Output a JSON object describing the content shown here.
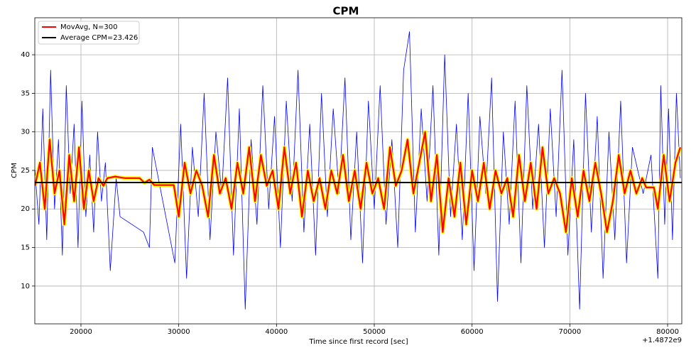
{
  "chart_data": {
    "type": "line",
    "title": "CPM",
    "x_label": "Time since first record [sec]",
    "y_label": "CPM",
    "x_offset_label": "+1.4872e9",
    "xlim": [
      15280,
      81450
    ],
    "ylim": [
      5.1,
      44.8
    ],
    "xticks": [
      20000,
      30000,
      40000,
      50000,
      60000,
      70000,
      80000
    ],
    "yticks": [
      10,
      15,
      20,
      25,
      30,
      35,
      40
    ],
    "grid": true,
    "legend": "upper left",
    "series": [
      {
        "color": "#0000ff",
        "x": [
          15300,
          15700,
          16100,
          16500,
          16900,
          17300,
          17700,
          18100,
          18500,
          18900,
          19300,
          19700,
          20100,
          20500,
          20900,
          21300,
          21700,
          22100,
          22500,
          23000,
          23600,
          24000,
          26400,
          27000,
          27300,
          29600,
          30200,
          30800,
          31400,
          32000,
          32600,
          33200,
          33800,
          34400,
          35000,
          35600,
          36200,
          36800,
          37400,
          38000,
          38600,
          39200,
          39800,
          40400,
          41000,
          41600,
          42200,
          42800,
          43400,
          44000,
          44600,
          45200,
          45800,
          46400,
          47000,
          47600,
          48200,
          48800,
          49400,
          50000,
          50600,
          51200,
          51800,
          52400,
          53000,
          53600,
          54200,
          54800,
          55400,
          56000,
          56600,
          57200,
          57800,
          58400,
          59000,
          59600,
          60200,
          60800,
          61400,
          62000,
          62600,
          63200,
          63800,
          64400,
          65000,
          65600,
          66200,
          66800,
          67400,
          68000,
          68600,
          69200,
          69800,
          70400,
          71000,
          71600,
          72200,
          72800,
          73400,
          74000,
          74600,
          75200,
          75800,
          76400,
          77500,
          78300,
          79000,
          79300,
          79700,
          80100,
          80500,
          80900,
          81300
        ],
        "values": [
          25,
          18,
          33,
          16,
          38,
          20,
          29,
          14,
          36,
          22,
          31,
          15,
          34,
          19,
          27,
          17,
          30,
          21,
          26,
          12,
          24,
          19,
          17,
          15,
          28,
          13,
          31,
          11,
          28,
          19,
          35,
          16,
          30,
          22,
          37,
          14,
          33,
          7,
          29,
          18,
          36,
          20,
          32,
          15,
          34,
          21,
          38,
          17,
          31,
          14,
          35,
          19,
          33,
          22,
          37,
          16,
          30,
          13,
          34,
          20,
          36,
          18,
          29,
          15,
          38,
          43,
          17,
          33,
          21,
          36,
          14,
          40,
          19,
          31,
          16,
          35,
          12,
          32,
          22,
          37,
          8,
          30,
          18,
          34,
          13,
          36,
          20,
          31,
          15,
          33,
          19,
          38,
          14,
          29,
          7,
          35,
          17,
          32,
          11,
          30,
          16,
          34,
          13,
          28,
          22,
          27,
          11,
          36,
          18,
          33,
          16,
          35,
          24
        ]
      },
      {
        "name": "MovAvg, N=300",
        "color": "#ff0000",
        "edge_color": "#ffff00",
        "x": [
          15300,
          15800,
          16300,
          16800,
          17300,
          17800,
          18300,
          18800,
          19300,
          19800,
          20300,
          20800,
          21300,
          21800,
          22300,
          22700,
          23500,
          24500,
          26000,
          26500,
          27000,
          27500,
          29500,
          30000,
          30600,
          31200,
          31800,
          32400,
          33000,
          33600,
          34200,
          34800,
          35400,
          36000,
          36600,
          37200,
          37800,
          38400,
          39000,
          39600,
          40200,
          40800,
          41400,
          42000,
          42600,
          43200,
          43800,
          44400,
          45000,
          45600,
          46200,
          46800,
          47400,
          48000,
          48600,
          49200,
          49800,
          50400,
          51000,
          51600,
          52200,
          52800,
          53400,
          54000,
          54600,
          55200,
          55800,
          56400,
          57000,
          57600,
          58200,
          58800,
          59400,
          60000,
          60600,
          61200,
          61800,
          62400,
          63000,
          63600,
          64200,
          64800,
          65400,
          66000,
          66600,
          67200,
          67800,
          68400,
          69000,
          69600,
          70200,
          70800,
          71400,
          72000,
          72600,
          73200,
          73800,
          74400,
          75000,
          75600,
          76200,
          76800,
          77400,
          77800,
          78600,
          79000,
          79600,
          80200,
          80800,
          81300
        ],
        "values": [
          23,
          26,
          20,
          29,
          22,
          25,
          18,
          27,
          21,
          28,
          20,
          25,
          21,
          24,
          23,
          24,
          24.2,
          24,
          24,
          23.4,
          23.8,
          23.1,
          23.1,
          19,
          26,
          22,
          25,
          23,
          19,
          27,
          22,
          24,
          20,
          26,
          22,
          28,
          21,
          27,
          23,
          25,
          20,
          28,
          22,
          26,
          19,
          25,
          21,
          24,
          20,
          25,
          22,
          27,
          21,
          25,
          20,
          26,
          22,
          24,
          20,
          28,
          23,
          25,
          29,
          22,
          26,
          30,
          21,
          27,
          17,
          24,
          19,
          26,
          18,
          25,
          21,
          26,
          20,
          25,
          22,
          24,
          19,
          27,
          21,
          26,
          20,
          28,
          22,
          24,
          22,
          17,
          24,
          19,
          25,
          21,
          26,
          22,
          17,
          21,
          27,
          22,
          25,
          22,
          24,
          22.8,
          22.8,
          20,
          27,
          21,
          26,
          28
        ]
      }
    ],
    "average": {
      "name": "Average CPM=23.426",
      "value": 23.426,
      "color": "#000000"
    }
  }
}
